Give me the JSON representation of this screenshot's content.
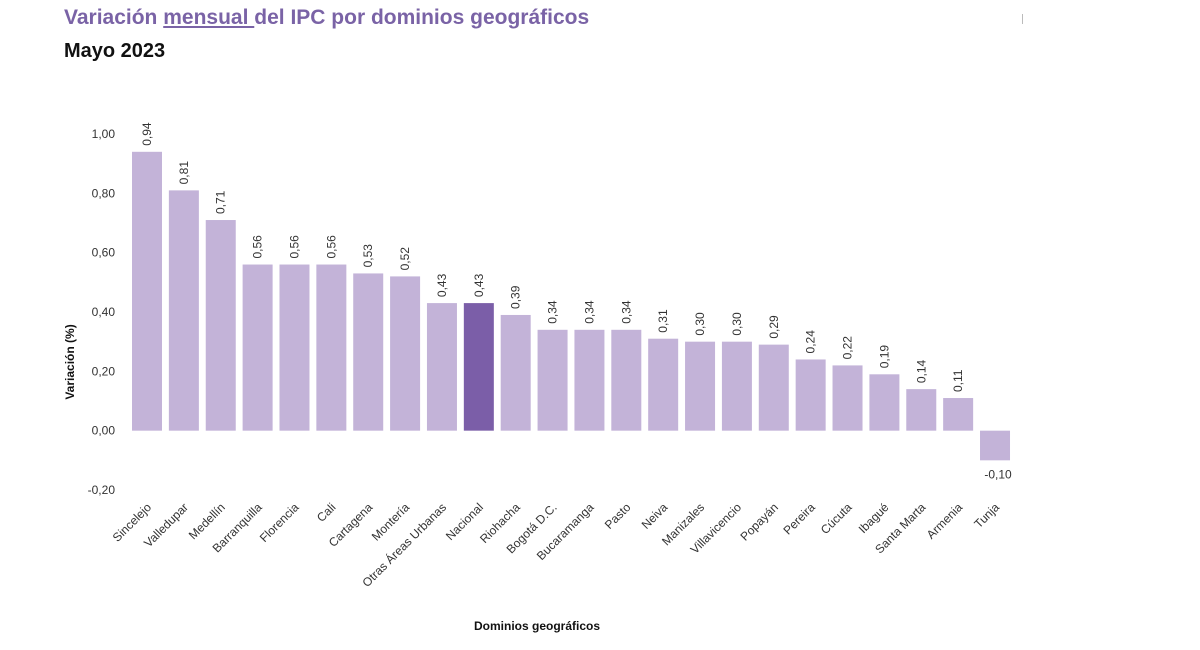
{
  "title": {
    "part1": "Variación ",
    "underlined": "mensual ",
    "part2": "del IPC por dominios geográficos"
  },
  "subtitle": "Mayo 2023",
  "colors": {
    "bar": "#c3b3d8",
    "highlight": "#7b5ea8",
    "title": "#7a63a6"
  },
  "chart_data": {
    "type": "bar",
    "title": "Variación mensual del IPC por dominios geográficos",
    "subtitle": "Mayo 2023",
    "xlabel": "Dominios geográficos",
    "ylabel": "Variación (%)",
    "ylim": [
      -0.2,
      1.0
    ],
    "yticks": [
      "-0,20",
      "0,00",
      "0,20",
      "0,40",
      "0,60",
      "0,80",
      "1,00"
    ],
    "ytick_values": [
      -0.2,
      0.0,
      0.2,
      0.4,
      0.6,
      0.8,
      1.0
    ],
    "grid": false,
    "categories": [
      "Sincelejo",
      "Valledupar",
      "Medellín",
      "Barranquilla",
      "Florencia",
      "Cali",
      "Cartagena",
      "Montería",
      "Otras Áreas Urbanas",
      "Nacional",
      "Riohacha",
      "Bogotá D.C.",
      "Bucaramanga",
      "Pasto",
      "Neiva",
      "Manizales",
      "Villavicencio",
      "Popayán",
      "Pereira",
      "Cúcuta",
      "Ibagué",
      "Santa Marta",
      "Armenia",
      "Tunja"
    ],
    "values": [
      0.94,
      0.81,
      0.71,
      0.56,
      0.56,
      0.56,
      0.53,
      0.52,
      0.43,
      0.43,
      0.39,
      0.34,
      0.34,
      0.34,
      0.31,
      0.3,
      0.3,
      0.29,
      0.24,
      0.22,
      0.19,
      0.14,
      0.11,
      -0.1
    ],
    "value_labels": [
      "0,94",
      "0,81",
      "0,71",
      "0,56",
      "0,56",
      "0,56",
      "0,53",
      "0,52",
      "0,43",
      "0,43",
      "0,39",
      "0,34",
      "0,34",
      "0,34",
      "0,31",
      "0,30",
      "0,30",
      "0,29",
      "0,24",
      "0,22",
      "0,19",
      "0,14",
      "0,11",
      "-0,10"
    ],
    "highlight_category": "Nacional"
  }
}
